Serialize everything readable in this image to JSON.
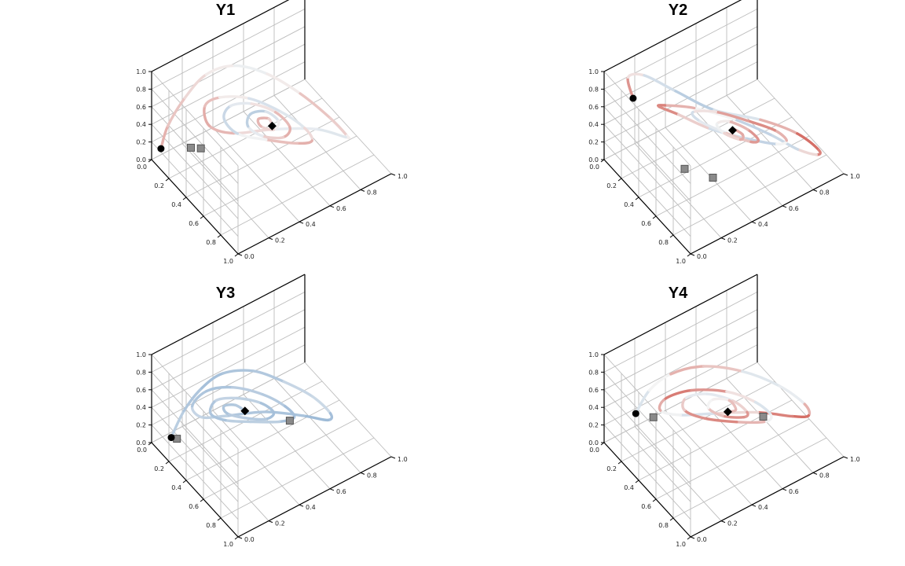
{
  "chart_data": [
    {
      "type": "line",
      "title": "Y1",
      "projection": "3d",
      "xlim": [
        0,
        1
      ],
      "ylim": [
        0,
        1
      ],
      "zlim": [
        0,
        1
      ],
      "ticks": [
        "0.0",
        "0.2",
        "0.4",
        "0.6",
        "0.8",
        "1.0"
      ],
      "grid": true,
      "color_scale": [
        "#c8362b",
        "#f4f4f4",
        "#4f86bd"
      ],
      "series": [
        {
          "points": [
            [
              0.02,
              0.05,
              0.1
            ],
            [
              0.01,
              0.1,
              0.3
            ],
            [
              0.03,
              0.2,
              0.55
            ],
            [
              0.1,
              0.3,
              0.8
            ],
            [
              0.25,
              0.4,
              0.97
            ],
            [
              0.45,
              0.5,
              1.0
            ],
            [
              0.62,
              0.62,
              0.85
            ],
            [
              0.72,
              0.76,
              0.55
            ],
            [
              0.7,
              0.88,
              0.22
            ],
            [
              0.58,
              0.94,
              0.02
            ],
            [
              0.4,
              0.85,
              0.0
            ],
            [
              0.25,
              0.65,
              0.02
            ],
            [
              0.15,
              0.45,
              0.05
            ],
            [
              0.1,
              0.32,
              0.2
            ],
            [
              0.12,
              0.28,
              0.48
            ],
            [
              0.22,
              0.32,
              0.65
            ],
            [
              0.38,
              0.42,
              0.72
            ],
            [
              0.52,
              0.55,
              0.6
            ],
            [
              0.6,
              0.66,
              0.4
            ],
            [
              0.58,
              0.72,
              0.18
            ],
            [
              0.48,
              0.68,
              0.08
            ],
            [
              0.35,
              0.55,
              0.1
            ],
            [
              0.25,
              0.42,
              0.18
            ],
            [
              0.2,
              0.36,
              0.35
            ],
            [
              0.24,
              0.38,
              0.52
            ],
            [
              0.34,
              0.46,
              0.58
            ],
            [
              0.44,
              0.56,
              0.5
            ],
            [
              0.5,
              0.62,
              0.34
            ],
            [
              0.46,
              0.6,
              0.2
            ],
            [
              0.36,
              0.52,
              0.18
            ],
            [
              0.3,
              0.46,
              0.28
            ],
            [
              0.31,
              0.47,
              0.42
            ],
            [
              0.38,
              0.53,
              0.47
            ],
            [
              0.44,
              0.58,
              0.38
            ],
            [
              0.42,
              0.56,
              0.28
            ],
            [
              0.36,
              0.51,
              0.3
            ],
            [
              0.35,
              0.5,
              0.38
            ],
            [
              0.4,
              0.54,
              0.4
            ],
            [
              0.42,
              0.55,
              0.33
            ]
          ],
          "values": [
            0.3,
            0.35,
            0.4,
            0.45,
            0.5,
            0.55,
            0.4,
            0.35,
            0.45,
            0.52,
            0.6,
            0.48,
            0.38,
            0.3,
            0.32,
            0.4,
            0.55,
            0.62,
            0.5,
            0.36,
            0.28,
            0.44,
            0.58,
            0.66,
            0.6,
            0.5,
            0.4,
            0.3,
            0.34,
            0.46,
            0.62,
            0.7,
            0.64,
            0.52,
            0.44,
            0.38,
            0.3,
            0.36,
            0.45
          ],
          "start": [
            0.02,
            0.05,
            0.1
          ],
          "end": [
            0.42,
            0.55,
            0.33
          ],
          "markers": [
            [
              0.1,
              0.2,
              0.06
            ],
            [
              0.18,
              0.22,
              0.12
            ]
          ]
        }
      ]
    },
    {
      "type": "line",
      "title": "Y2",
      "projection": "3d",
      "xlim": [
        0,
        1
      ],
      "ylim": [
        0,
        1
      ],
      "zlim": [
        0,
        1
      ],
      "ticks": [
        "0.0",
        "0.2",
        "0.4",
        "0.6",
        "0.8",
        "1.0"
      ],
      "grid": true,
      "color_scale": [
        "#c8362b",
        "#f4f4f4",
        "#4f86bd"
      ],
      "series": [
        {
          "points": [
            [
              0.3,
              0.02,
              1.0
            ],
            [
              0.1,
              0.1,
              0.95
            ],
            [
              0.02,
              0.25,
              0.75
            ],
            [
              0.03,
              0.45,
              0.4
            ],
            [
              0.12,
              0.65,
              0.1
            ],
            [
              0.3,
              0.85,
              0.0
            ],
            [
              0.55,
              0.95,
              0.02
            ],
            [
              0.8,
              0.95,
              0.1
            ],
            [
              0.95,
              0.85,
              0.3
            ],
            [
              1.0,
              0.7,
              0.55
            ],
            [
              0.95,
              0.55,
              0.8
            ],
            [
              0.8,
              0.4,
              0.95
            ],
            [
              0.6,
              0.25,
              1.0
            ],
            [
              0.42,
              0.16,
              0.92
            ],
            [
              0.28,
              0.2,
              0.72
            ],
            [
              0.24,
              0.35,
              0.45
            ],
            [
              0.3,
              0.52,
              0.2
            ],
            [
              0.45,
              0.68,
              0.1
            ],
            [
              0.65,
              0.76,
              0.18
            ],
            [
              0.8,
              0.74,
              0.4
            ],
            [
              0.84,
              0.64,
              0.65
            ],
            [
              0.78,
              0.5,
              0.82
            ],
            [
              0.62,
              0.38,
              0.86
            ],
            [
              0.46,
              0.32,
              0.74
            ],
            [
              0.4,
              0.4,
              0.5
            ],
            [
              0.46,
              0.54,
              0.3
            ],
            [
              0.6,
              0.62,
              0.28
            ],
            [
              0.72,
              0.6,
              0.45
            ],
            [
              0.74,
              0.52,
              0.66
            ],
            [
              0.66,
              0.44,
              0.74
            ],
            [
              0.56,
              0.42,
              0.62
            ],
            [
              0.54,
              0.48,
              0.44
            ],
            [
              0.62,
              0.54,
              0.4
            ],
            [
              0.68,
              0.52,
              0.54
            ],
            [
              0.64,
              0.48,
              0.6
            ],
            [
              0.6,
              0.5,
              0.52
            ]
          ],
          "values": [
            0.15,
            0.35,
            0.55,
            0.65,
            0.7,
            0.45,
            0.2,
            0.1,
            0.3,
            0.55,
            0.7,
            0.6,
            0.4,
            0.25,
            0.15,
            0.3,
            0.5,
            0.7,
            0.6,
            0.4,
            0.25,
            0.2,
            0.35,
            0.55,
            0.65,
            0.45,
            0.3,
            0.22,
            0.28,
            0.4,
            0.55,
            0.48,
            0.35,
            0.28,
            0.32,
            0.4
          ],
          "start": [
            0.3,
            0.02,
            1.0
          ],
          "end": [
            0.6,
            0.5,
            0.52
          ],
          "markers": [
            [
              0.4,
              0.3,
              0.05
            ],
            [
              0.55,
              0.4,
              0.02
            ]
          ]
        }
      ]
    },
    {
      "type": "line",
      "title": "Y3",
      "projection": "3d",
      "xlim": [
        0,
        1
      ],
      "ylim": [
        0,
        1
      ],
      "zlim": [
        0,
        1
      ],
      "ticks": [
        "0.0",
        "0.2",
        "0.4",
        "0.6",
        "0.8",
        "1.0"
      ],
      "grid": true,
      "color_scale": [
        "#c8362b",
        "#f4f4f4",
        "#4f86bd"
      ],
      "series": [
        {
          "points": [
            [
              0.05,
              0.1,
              0.02
            ],
            [
              0.02,
              0.2,
              0.2
            ],
            [
              0.05,
              0.3,
              0.4
            ],
            [
              0.15,
              0.38,
              0.6
            ],
            [
              0.32,
              0.48,
              0.72
            ],
            [
              0.5,
              0.58,
              0.7
            ],
            [
              0.62,
              0.7,
              0.55
            ],
            [
              0.65,
              0.8,
              0.3
            ],
            [
              0.55,
              0.84,
              0.08
            ],
            [
              0.38,
              0.78,
              0.0
            ],
            [
              0.22,
              0.62,
              0.02
            ],
            [
              0.12,
              0.42,
              0.05
            ],
            [
              0.08,
              0.28,
              0.12
            ],
            [
              0.08,
              0.22,
              0.3
            ],
            [
              0.14,
              0.28,
              0.48
            ],
            [
              0.26,
              0.38,
              0.56
            ],
            [
              0.4,
              0.5,
              0.52
            ],
            [
              0.48,
              0.6,
              0.38
            ],
            [
              0.48,
              0.66,
              0.2
            ],
            [
              0.38,
              0.62,
              0.08
            ],
            [
              0.26,
              0.5,
              0.06
            ],
            [
              0.18,
              0.38,
              0.1
            ],
            [
              0.15,
              0.3,
              0.22
            ],
            [
              0.18,
              0.32,
              0.38
            ],
            [
              0.28,
              0.4,
              0.44
            ],
            [
              0.38,
              0.5,
              0.4
            ],
            [
              0.42,
              0.56,
              0.28
            ],
            [
              0.36,
              0.54,
              0.16
            ],
            [
              0.26,
              0.46,
              0.14
            ],
            [
              0.2,
              0.38,
              0.2
            ],
            [
              0.2,
              0.36,
              0.3
            ],
            [
              0.26,
              0.4,
              0.34
            ],
            [
              0.3,
              0.44,
              0.28
            ]
          ],
          "values": [
            0.65,
            0.7,
            0.72,
            0.75,
            0.68,
            0.72,
            0.55,
            0.7,
            0.78,
            0.74,
            0.7,
            0.72,
            0.6,
            0.68,
            0.74,
            0.7,
            0.66,
            0.72,
            0.76,
            0.7,
            0.64,
            0.7,
            0.74,
            0.68,
            0.62,
            0.7,
            0.75,
            0.72,
            0.66,
            0.7,
            0.73,
            0.68,
            0.7
          ],
          "start": [
            0.05,
            0.1,
            0.02
          ],
          "end": [
            0.3,
            0.44,
            0.28
          ],
          "markers": [
            [
              0.08,
              0.12,
              0.02
            ],
            [
              0.5,
              0.62,
              0.22
            ]
          ]
        }
      ]
    },
    {
      "type": "line",
      "title": "Y4",
      "projection": "3d",
      "xlim": [
        0,
        1
      ],
      "ylim": [
        0,
        1
      ],
      "zlim": [
        0,
        1
      ],
      "ticks": [
        "0.0",
        "0.2",
        "0.4",
        "0.6",
        "0.8",
        "1.0"
      ],
      "grid": true,
      "color_scale": [
        "#c8362b",
        "#f4f4f4",
        "#4f86bd"
      ],
      "series": [
        {
          "points": [
            [
              0.1,
              0.15,
              0.3
            ],
            [
              0.08,
              0.25,
              0.45
            ],
            [
              0.15,
              0.35,
              0.62
            ],
            [
              0.3,
              0.48,
              0.75
            ],
            [
              0.5,
              0.62,
              0.78
            ],
            [
              0.68,
              0.76,
              0.68
            ],
            [
              0.76,
              0.88,
              0.45
            ],
            [
              0.7,
              0.94,
              0.2
            ],
            [
              0.55,
              0.92,
              0.05
            ],
            [
              0.36,
              0.8,
              0.0
            ],
            [
              0.22,
              0.6,
              0.02
            ],
            [
              0.14,
              0.42,
              0.08
            ],
            [
              0.12,
              0.3,
              0.22
            ],
            [
              0.18,
              0.3,
              0.42
            ],
            [
              0.3,
              0.4,
              0.55
            ],
            [
              0.46,
              0.54,
              0.58
            ],
            [
              0.58,
              0.66,
              0.48
            ],
            [
              0.62,
              0.74,
              0.3
            ],
            [
              0.54,
              0.74,
              0.14
            ],
            [
              0.4,
              0.64,
              0.08
            ],
            [
              0.28,
              0.5,
              0.12
            ],
            [
              0.22,
              0.4,
              0.24
            ],
            [
              0.24,
              0.4,
              0.4
            ],
            [
              0.34,
              0.48,
              0.48
            ],
            [
              0.46,
              0.58,
              0.44
            ],
            [
              0.52,
              0.64,
              0.32
            ],
            [
              0.48,
              0.64,
              0.22
            ],
            [
              0.38,
              0.56,
              0.2
            ],
            [
              0.32,
              0.5,
              0.28
            ],
            [
              0.34,
              0.52,
              0.38
            ],
            [
              0.42,
              0.58,
              0.4
            ],
            [
              0.46,
              0.6,
              0.32
            ],
            [
              0.42,
              0.57,
              0.28
            ]
          ],
          "values": [
            0.55,
            0.6,
            0.4,
            0.25,
            0.5,
            0.62,
            0.45,
            0.2,
            0.1,
            0.3,
            0.55,
            0.62,
            0.4,
            0.22,
            0.15,
            0.35,
            0.55,
            0.6,
            0.42,
            0.25,
            0.18,
            0.3,
            0.48,
            0.6,
            0.5,
            0.32,
            0.2,
            0.28,
            0.45,
            0.55,
            0.42,
            0.3,
            0.38
          ],
          "start": [
            0.1,
            0.15,
            0.3
          ],
          "end": [
            0.42,
            0.57,
            0.28
          ],
          "markers": [
            [
              0.18,
              0.22,
              0.28
            ],
            [
              0.6,
              0.7,
              0.3
            ]
          ]
        }
      ]
    }
  ]
}
